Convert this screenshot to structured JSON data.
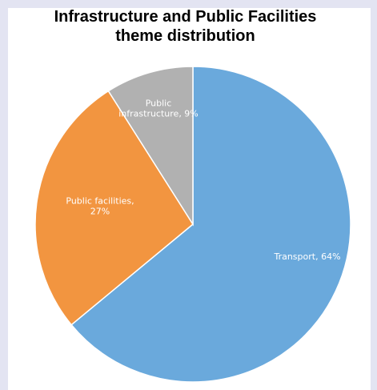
{
  "chart_data": {
    "type": "pie",
    "title_lines": [
      "Infrastructure and Public Facilities",
      "theme distribution"
    ],
    "slices": [
      {
        "label": "Transport",
        "value": 64,
        "color": "#6aa9dc",
        "label_lines": [
          "Transport, 64%"
        ]
      },
      {
        "label": "Public facilities",
        "value": 27,
        "color": "#f29540",
        "label_lines": [
          "Public facilities,",
          "27%"
        ]
      },
      {
        "label": "Public infrastructure",
        "value": 9,
        "color": "#b1b1b1",
        "label_lines": [
          "Public",
          "infrastructure, 9%"
        ]
      }
    ],
    "legend": "none"
  }
}
